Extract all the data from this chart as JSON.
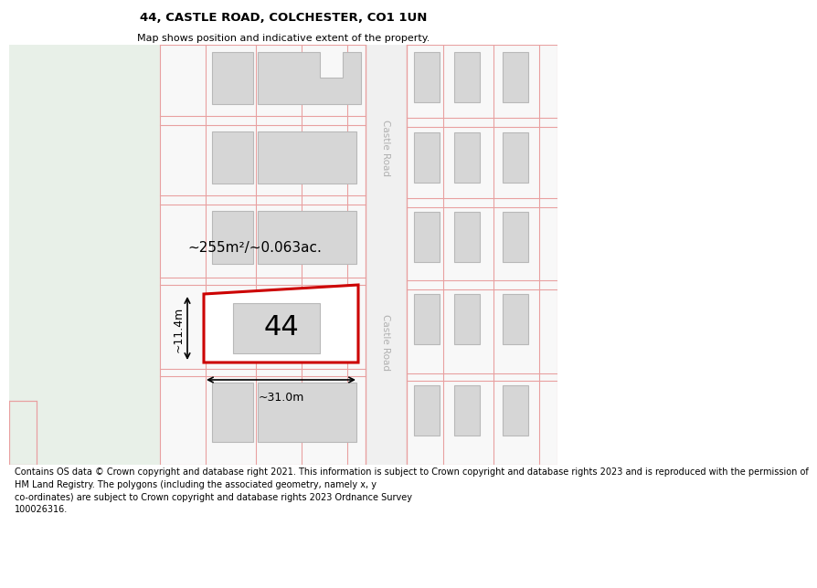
{
  "title": "44, CASTLE ROAD, COLCHESTER, CO1 1UN",
  "subtitle": "Map shows position and indicative extent of the property.",
  "footer": "Contains OS data © Crown copyright and database right 2021. This information is subject to Crown copyright and database rights 2023 and is reproduced with the permission of\nHM Land Registry. The polygons (including the associated geometry, namely x, y\nco-ordinates) are subject to Crown copyright and database rights 2023 Ordnance Survey\n100026316.",
  "bg_green": "#e8f0e8",
  "bg_map": "#fafafa",
  "building_fill": "#d6d6d6",
  "building_edge": "#b8b8b8",
  "plot_line": "#e8a0a0",
  "highlight_red": "#cc0000",
  "road_text_color": "#b0b0b0",
  "area_label": "~255m²/~0.063ac.",
  "width_label": "~31.0m",
  "height_label": "~11.4m",
  "number_label": "44",
  "road_label": "Castle Road"
}
